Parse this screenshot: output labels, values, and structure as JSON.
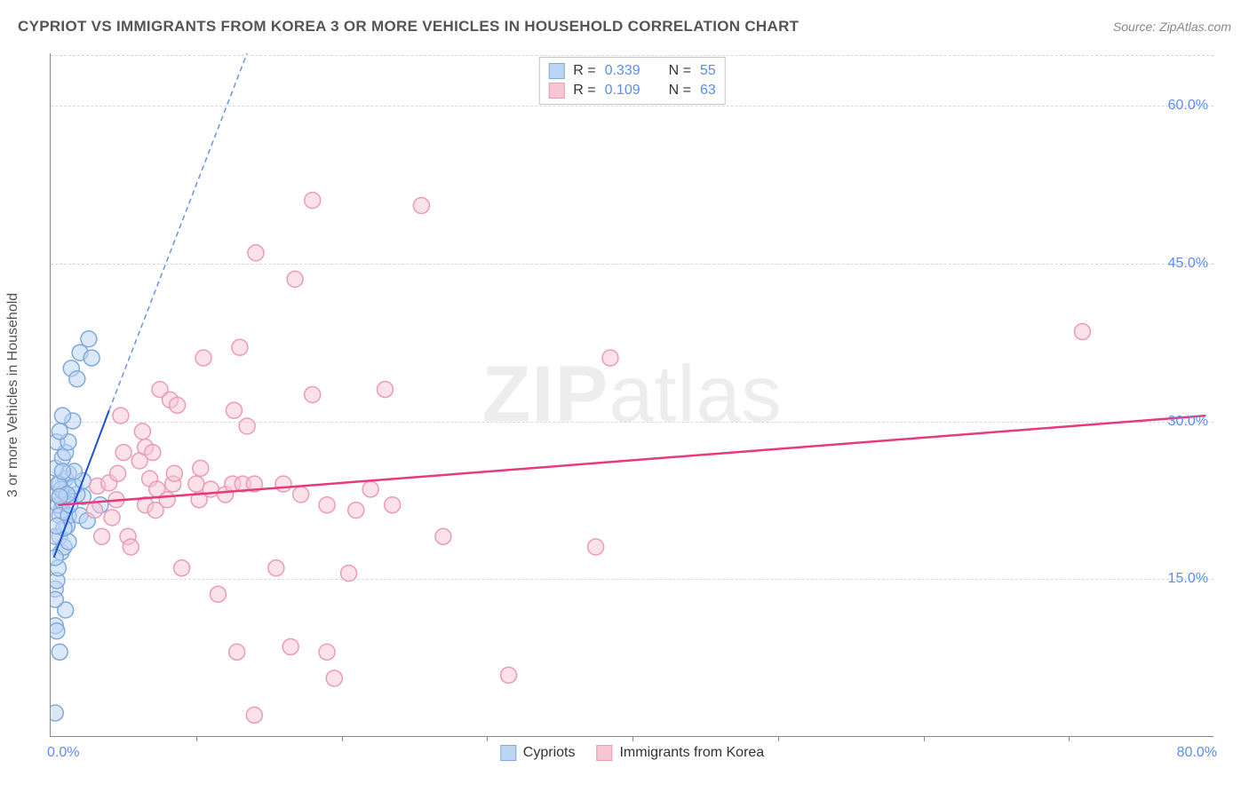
{
  "header": {
    "title": "CYPRIOT VS IMMIGRANTS FROM KOREA 3 OR MORE VEHICLES IN HOUSEHOLD CORRELATION CHART",
    "source_prefix": "Source: ",
    "source_name": "ZipAtlas.com"
  },
  "chart": {
    "type": "scatter",
    "watermark_light": "ZIP",
    "watermark_rest": "atlas",
    "ylabel": "3 or more Vehicles in Household",
    "xlim": [
      0,
      80
    ],
    "ylim": [
      0,
      65
    ],
    "ytick_step": 15,
    "xtick_step": 10,
    "yticks": [
      15,
      30,
      45,
      60
    ],
    "ytick_labels": [
      "15.0%",
      "30.0%",
      "45.0%",
      "60.0%"
    ],
    "xaxis_min_label": "0.0%",
    "xaxis_max_label": "80.0%",
    "background_color": "#ffffff",
    "grid_color": "#d8d8d8",
    "axis_color": "#888888",
    "marker_radius": 9,
    "marker_stroke_width": 1.5,
    "series": [
      {
        "name": "Cypriots",
        "fill": "#bcd5f2",
        "stroke": "#7fa9de",
        "fill_opacity": 0.55,
        "trend": {
          "x1": 0.2,
          "y1": 17.0,
          "x2": 4.0,
          "y2": 31.0,
          "color": "#1d4ed8",
          "width": 2
        },
        "extrapolation": {
          "x1": 4.0,
          "y1": 31.0,
          "x2": 13.5,
          "y2": 65.0,
          "color": "#6b93e6",
          "dash": "6,4",
          "width": 1.5
        },
        "R": "0.339",
        "N": "55",
        "points": [
          [
            0.3,
            2.2
          ],
          [
            0.3,
            14.0
          ],
          [
            0.4,
            14.8
          ],
          [
            0.6,
            19.0
          ],
          [
            0.7,
            21.5
          ],
          [
            0.5,
            22.0
          ],
          [
            0.8,
            22.3
          ],
          [
            0.4,
            23.0
          ],
          [
            0.9,
            23.2
          ],
          [
            0.6,
            24.0
          ],
          [
            1.0,
            24.5
          ],
          [
            1.2,
            25.0
          ],
          [
            0.3,
            25.5
          ],
          [
            0.8,
            26.5
          ],
          [
            1.0,
            27.0
          ],
          [
            0.4,
            28.0
          ],
          [
            1.2,
            28.0
          ],
          [
            0.6,
            29.0
          ],
          [
            1.5,
            30.0
          ],
          [
            0.8,
            30.5
          ],
          [
            1.0,
            12.0
          ],
          [
            0.3,
            13.0
          ],
          [
            0.5,
            16.0
          ],
          [
            0.7,
            17.5
          ],
          [
            0.9,
            18.0
          ],
          [
            0.3,
            19.0
          ],
          [
            1.1,
            20.0
          ],
          [
            0.6,
            21.0
          ],
          [
            0.3,
            10.5
          ],
          [
            0.4,
            10.0
          ],
          [
            1.2,
            21.0
          ],
          [
            2.2,
            22.8
          ],
          [
            2.0,
            21.0
          ],
          [
            1.8,
            23.0
          ],
          [
            2.5,
            20.5
          ],
          [
            1.6,
            23.8
          ],
          [
            2.2,
            24.3
          ],
          [
            3.4,
            22.0
          ],
          [
            2.0,
            36.5
          ],
          [
            2.6,
            37.8
          ],
          [
            1.4,
            35.0
          ],
          [
            1.8,
            34.0
          ],
          [
            0.6,
            8.0
          ],
          [
            1.2,
            18.5
          ],
          [
            0.9,
            19.8
          ],
          [
            0.4,
            20.0
          ],
          [
            1.3,
            22.0
          ],
          [
            0.7,
            23.5
          ],
          [
            0.5,
            24.0
          ],
          [
            1.1,
            23.0
          ],
          [
            1.6,
            25.2
          ],
          [
            0.3,
            17.0
          ],
          [
            2.8,
            36.0
          ],
          [
            0.8,
            25.2
          ],
          [
            0.6,
            22.8
          ]
        ]
      },
      {
        "name": "Immigrants from Korea",
        "fill": "#f8c6d3",
        "stroke": "#eb9bb4",
        "fill_opacity": 0.5,
        "trend": {
          "x1": 0.5,
          "y1": 22.0,
          "x2": 79.5,
          "y2": 30.5,
          "color": "#e6397e",
          "width": 2.5
        },
        "R": "0.109",
        "N": "63",
        "points": [
          [
            3.0,
            21.5
          ],
          [
            3.2,
            23.8
          ],
          [
            3.5,
            19.0
          ],
          [
            4.0,
            24.1
          ],
          [
            4.2,
            20.8
          ],
          [
            4.5,
            22.5
          ],
          [
            4.6,
            25.0
          ],
          [
            5.0,
            27.0
          ],
          [
            5.3,
            19.0
          ],
          [
            5.5,
            18.0
          ],
          [
            6.1,
            26.2
          ],
          [
            6.5,
            22.0
          ],
          [
            6.5,
            27.5
          ],
          [
            6.8,
            24.5
          ],
          [
            7.0,
            27.0
          ],
          [
            7.2,
            21.5
          ],
          [
            7.3,
            23.5
          ],
          [
            7.5,
            33.0
          ],
          [
            8.0,
            22.5
          ],
          [
            8.2,
            32.0
          ],
          [
            8.4,
            24.0
          ],
          [
            8.5,
            25.0
          ],
          [
            8.7,
            31.5
          ],
          [
            9.0,
            16.0
          ],
          [
            10.0,
            24.0
          ],
          [
            10.2,
            22.5
          ],
          [
            10.3,
            25.5
          ],
          [
            10.5,
            36.0
          ],
          [
            11.0,
            23.5
          ],
          [
            11.5,
            13.5
          ],
          [
            12.0,
            23.0
          ],
          [
            12.5,
            24.0
          ],
          [
            12.6,
            31.0
          ],
          [
            12.8,
            8.0
          ],
          [
            13.0,
            37.0
          ],
          [
            13.2,
            24.0
          ],
          [
            13.5,
            29.5
          ],
          [
            14.0,
            2.0
          ],
          [
            14.0,
            24.0
          ],
          [
            14.1,
            46.0
          ],
          [
            15.5,
            16.0
          ],
          [
            16.0,
            24.0
          ],
          [
            16.5,
            8.5
          ],
          [
            16.8,
            43.5
          ],
          [
            17.2,
            23.0
          ],
          [
            18.0,
            32.5
          ],
          [
            18.0,
            51.0
          ],
          [
            19.0,
            8.0
          ],
          [
            19.0,
            22.0
          ],
          [
            19.5,
            5.5
          ],
          [
            20.5,
            15.5
          ],
          [
            21.0,
            21.5
          ],
          [
            22.0,
            23.5
          ],
          [
            23.0,
            33.0
          ],
          [
            23.5,
            22.0
          ],
          [
            25.5,
            50.5
          ],
          [
            27.0,
            19.0
          ],
          [
            31.5,
            5.8
          ],
          [
            37.5,
            18.0
          ],
          [
            38.5,
            36.0
          ],
          [
            71.0,
            38.5
          ],
          [
            4.8,
            30.5
          ],
          [
            6.3,
            29.0
          ]
        ]
      }
    ],
    "legend_stats": {
      "R_label": "R",
      "N_label": "N",
      "equals": "="
    }
  }
}
